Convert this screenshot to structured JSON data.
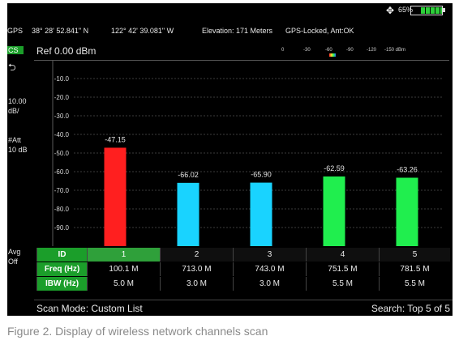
{
  "status": {
    "battery_percent": "65%",
    "battery_level": 0.65,
    "gps_label": "GPS",
    "coordinates_lat": "38° 28' 52.841\" N",
    "coordinates_lon": "122° 42' 39.081\" W",
    "elevation": "Elevation: 171 Meters",
    "gps_status": "GPS-Locked, Ant:OK"
  },
  "left_panel": {
    "mode": "CS",
    "scale_value": "10.00",
    "scale_unit": "dB/",
    "att_label": "#Att",
    "att_value": "10 dB",
    "avg_label": "Avg",
    "avg_value": "Off"
  },
  "ref": {
    "label": "Ref 0.00 dBm"
  },
  "mini_spectrum": {
    "ticks": [
      "0",
      "-30",
      "-60",
      "-90",
      "-120",
      "-150 dBm"
    ]
  },
  "chart_data": {
    "type": "bar",
    "categories": [
      "1",
      "2",
      "3",
      "4",
      "5"
    ],
    "values": [
      -47.15,
      -66.02,
      -65.9,
      -62.59,
      -63.26
    ],
    "value_labels": [
      "-47.15",
      "-66.02",
      "-65.90",
      "-62.59",
      "-63.26"
    ],
    "bar_colors": [
      "#ff1f1f",
      "#19d3ff",
      "#19d3ff",
      "#20ee4e",
      "#20ee4e"
    ],
    "ylim": [
      -100,
      0
    ],
    "y_ticks": [
      "-10.0",
      "-20.0",
      "-30.0",
      "-40.0",
      "-50.0",
      "-60.0",
      "-70.0",
      "-80.0",
      "-90.0"
    ],
    "grid": true
  },
  "table": {
    "headers": [
      "ID",
      "Freq (Hz)",
      "IBW (Hz)"
    ],
    "ids": [
      "1",
      "2",
      "3",
      "4",
      "5"
    ],
    "freq": [
      "100.1 M",
      "713.0 M",
      "743.0 M",
      "751.5 M",
      "781.5 M"
    ],
    "ibw": [
      "5.0 M",
      "3.0 M",
      "3.0 M",
      "5.5 M",
      "5.5 M"
    ]
  },
  "statusbar": {
    "scan_mode": "Scan Mode: Custom List",
    "search": "Search: Top 5 of 5"
  },
  "caption": "Figure 2. Display of wireless network channels scan",
  "colors": {
    "background": "#000000",
    "accent_green": "#1b9e2a"
  }
}
